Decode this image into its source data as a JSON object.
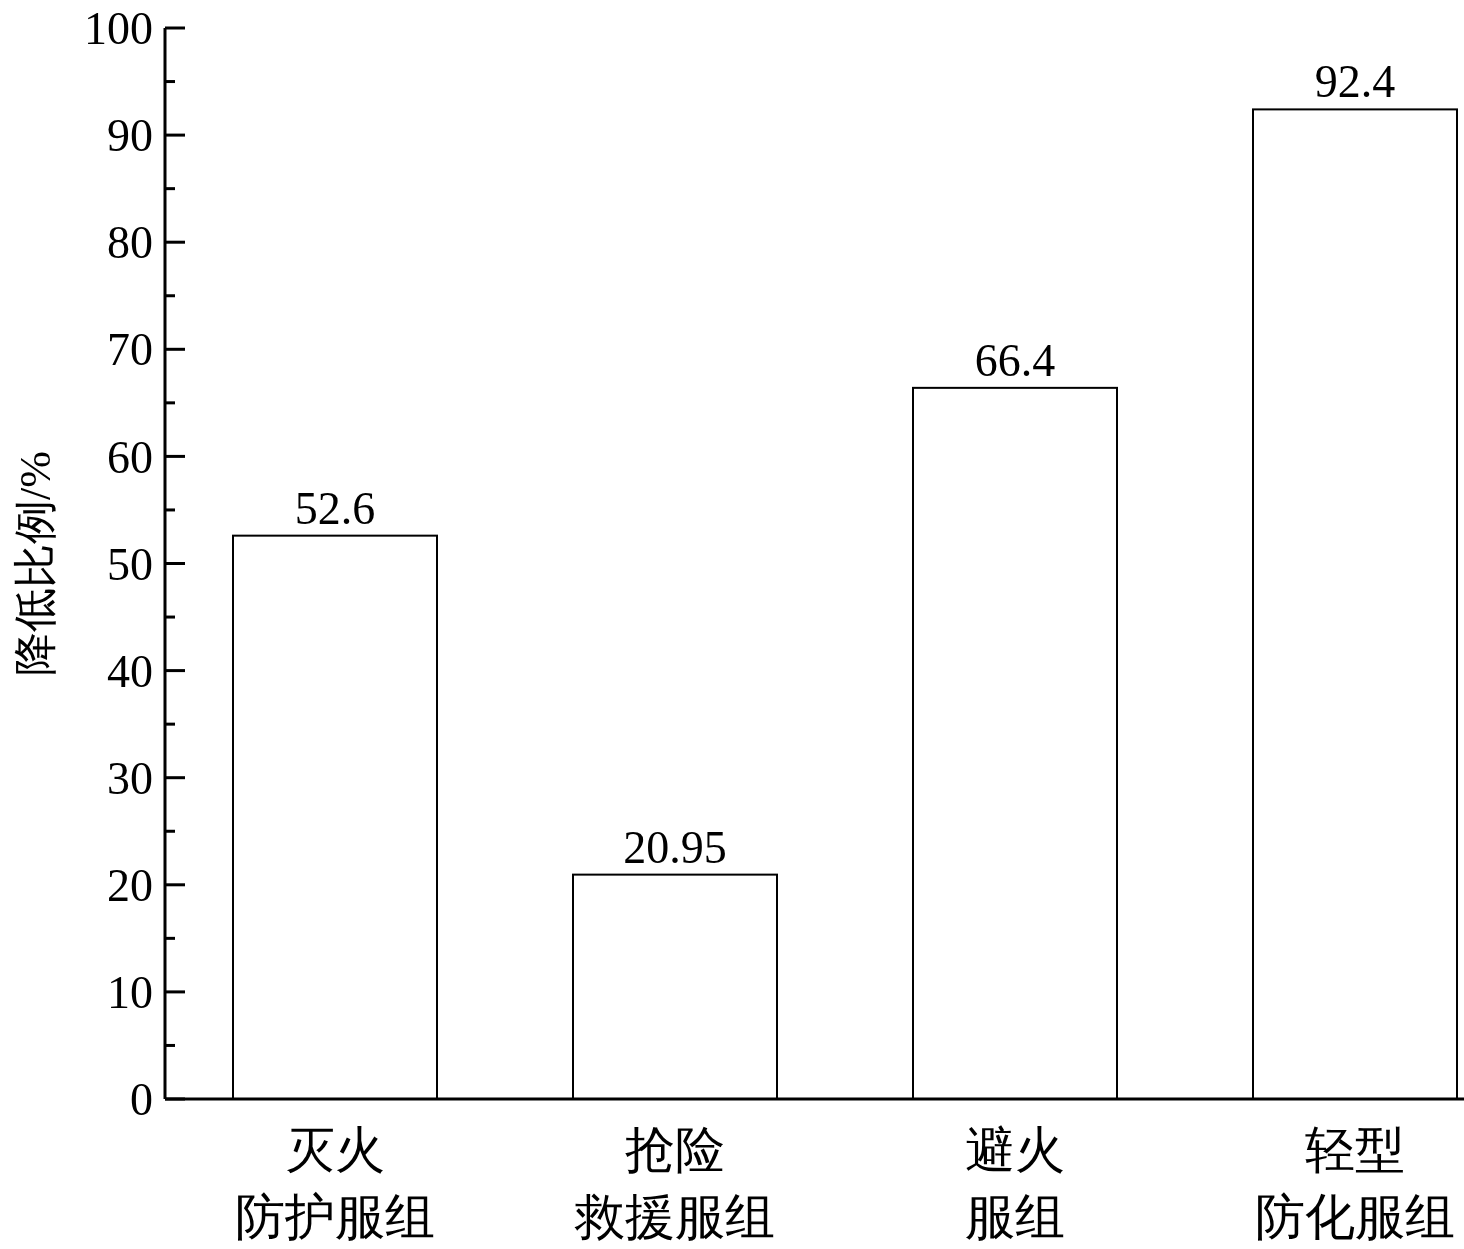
{
  "chart_data": {
    "type": "bar",
    "ylabel": "降低比例/%",
    "categories": [
      "灭火防护服组",
      "抢险救援服组",
      "避火服组",
      "轻型防化服组"
    ],
    "values": [
      52.6,
      20.95,
      66.4,
      92.4
    ],
    "color": "#ffffff",
    "data_labels": true,
    "grid": false,
    "ylim": [
      0,
      100
    ],
    "yticks": [
      0,
      {
        "value": 5,
        "label": null
      },
      10,
      {
        "value": 15,
        "label": null
      },
      20,
      {
        "value": 25,
        "label": null
      },
      30,
      {
        "value": 35,
        "label": null
      },
      40,
      {
        "value": 45,
        "label": null
      },
      50,
      {
        "value": 55,
        "label": null
      },
      60,
      {
        "value": 65,
        "label": null
      },
      70,
      {
        "value": 75,
        "label": null
      },
      80,
      {
        "value": 85,
        "label": null
      },
      90,
      {
        "value": 95,
        "label": null
      },
      100
    ]
  }
}
